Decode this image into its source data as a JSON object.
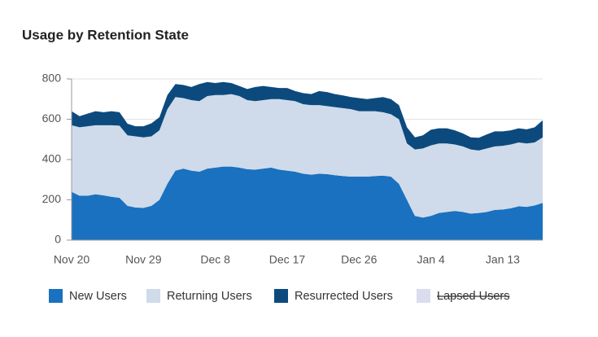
{
  "chart_data": {
    "type": "stacked_area",
    "title": "Usage by Retention State",
    "categories": [
      "Nov 20",
      null,
      null,
      null,
      null,
      null,
      null,
      null,
      null,
      "Nov 29",
      null,
      null,
      null,
      null,
      null,
      null,
      null,
      null,
      "Dec 8",
      null,
      null,
      null,
      null,
      null,
      null,
      null,
      null,
      "Dec 17",
      null,
      null,
      null,
      null,
      null,
      null,
      null,
      null,
      "Dec 26",
      null,
      null,
      null,
      null,
      null,
      null,
      null,
      null,
      "Jan 4",
      null,
      null,
      null,
      null,
      null,
      null,
      null,
      null,
      "Jan 13",
      null,
      null,
      null,
      null,
      null
    ],
    "series": [
      {
        "name": "New Users",
        "color": "#1a71bf",
        "values": [
          240,
          220,
          220,
          228,
          222,
          215,
          210,
          170,
          162,
          160,
          170,
          200,
          280,
          345,
          355,
          345,
          340,
          355,
          360,
          365,
          365,
          360,
          352,
          350,
          355,
          360,
          350,
          345,
          340,
          330,
          325,
          330,
          328,
          322,
          318,
          315,
          315,
          315,
          318,
          320,
          315,
          280,
          200,
          120,
          112,
          120,
          135,
          140,
          145,
          140,
          132,
          135,
          140,
          150,
          152,
          158,
          168,
          165,
          172,
          185
        ]
      },
      {
        "name": "Returning Users",
        "color": "#cfdbea",
        "values": [
          330,
          340,
          345,
          342,
          348,
          355,
          358,
          350,
          353,
          350,
          345,
          345,
          370,
          365,
          350,
          350,
          350,
          360,
          360,
          355,
          360,
          355,
          343,
          340,
          340,
          340,
          350,
          350,
          350,
          345,
          345,
          340,
          337,
          338,
          337,
          335,
          325,
          325,
          322,
          315,
          310,
          320,
          280,
          330,
          343,
          350,
          345,
          340,
          330,
          325,
          318,
          310,
          315,
          315,
          316,
          317,
          317,
          315,
          313,
          325
        ]
      },
      {
        "name": "Resurrected Users",
        "color": "#0c4a7e",
        "values": [
          70,
          55,
          63,
          70,
          65,
          70,
          67,
          58,
          50,
          55,
          65,
          65,
          70,
          65,
          65,
          65,
          85,
          70,
          60,
          65,
          55,
          50,
          55,
          70,
          70,
          60,
          55,
          60,
          50,
          55,
          55,
          70,
          70,
          65,
          63,
          60,
          65,
          60,
          65,
          75,
          75,
          70,
          80,
          60,
          65,
          78,
          75,
          75,
          70,
          65,
          60,
          63,
          70,
          75,
          72,
          70,
          70,
          70,
          75,
          85
        ]
      },
      {
        "name": "Lapsed Users",
        "color": "#dcdcf0",
        "hidden": true
      }
    ],
    "ylim": [
      0,
      800
    ],
    "yticks": [
      0,
      200,
      400,
      600,
      800
    ],
    "grid": true
  }
}
